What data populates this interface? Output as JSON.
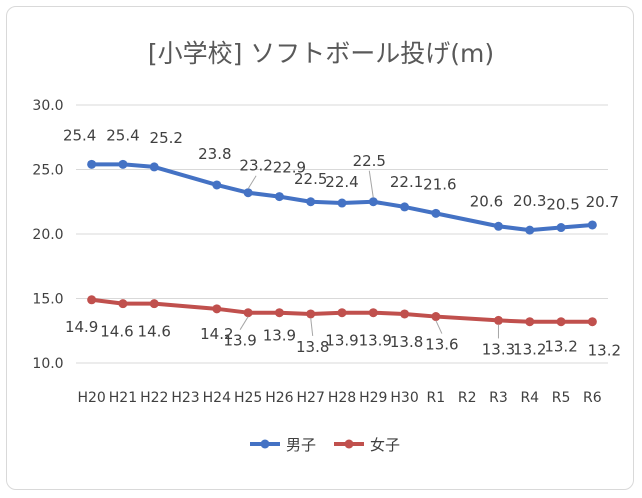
{
  "chart_data": {
    "type": "line",
    "title": "[小学校]  ソフトボール投げ(m)",
    "categories": [
      "H20",
      "H21",
      "H22",
      "H23",
      "H24",
      "H25",
      "H26",
      "H27",
      "H28",
      "H29",
      "H30",
      "R1",
      "R2",
      "R3",
      "R4",
      "R5",
      "R6"
    ],
    "series": [
      {
        "name": "男子",
        "color": "#4472c4",
        "values": [
          25.4,
          25.4,
          25.2,
          null,
          23.8,
          23.2,
          22.9,
          22.5,
          22.4,
          22.5,
          22.1,
          21.6,
          null,
          20.6,
          20.3,
          20.5,
          20.7
        ]
      },
      {
        "name": "女子",
        "color": "#c0504d",
        "values": [
          14.9,
          14.6,
          14.6,
          null,
          14.2,
          13.9,
          13.9,
          13.8,
          13.9,
          13.9,
          13.8,
          13.6,
          null,
          13.3,
          13.2,
          13.2,
          13.2
        ]
      }
    ],
    "yticks": [
      "10.0",
      "15.0",
      "20.0",
      "25.0",
      "30.0"
    ],
    "ylim": [
      10,
      30
    ],
    "xlabel": "",
    "ylabel": "",
    "grid": true,
    "legend_position": "bottom",
    "gridline_color": "#d9d9d9"
  }
}
